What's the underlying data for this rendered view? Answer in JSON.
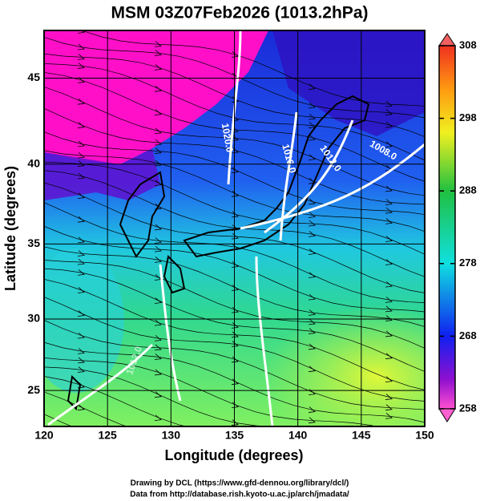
{
  "title": "MSM 03Z07Feb2026 (1013.2hPa)",
  "xlabel": "Longitude (degrees)",
  "ylabel": "Latitude  (degrees)",
  "xlim": [
    120,
    150
  ],
  "ylim": [
    22.4,
    47.6
  ],
  "xticks": [
    120,
    125,
    130,
    135,
    140,
    145,
    150
  ],
  "yticks": [
    25,
    30,
    35,
    40,
    45
  ],
  "colorbar": {
    "lim": [
      258,
      308
    ],
    "ticks": [
      258,
      268,
      278,
      288,
      298,
      308
    ]
  },
  "contour_labels": [
    "1020.0",
    "1016.0",
    "1012.0",
    "1008.0",
    "1012.0"
  ],
  "footer": [
    "Drawing by DCL (https://www.gfd-dennou.org/library/dcl/)",
    "Data from http://database.rish.kyoto-u.ac.jp/arch/jmadata/"
  ]
}
